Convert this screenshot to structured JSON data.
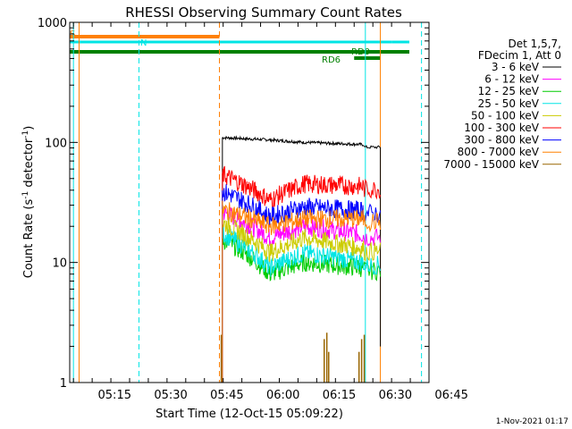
{
  "chart_data": {
    "type": "line",
    "title": "RHESSI Observing Summary Count Rates",
    "xlabel": "Start Time (12-Oct-15 05:09:22)",
    "ylabel_main": "Count Rate (s",
    "ylabel_sup1": "-1",
    "ylabel_mid": " detector",
    "ylabel_sup2": "-1",
    "ylabel_end": ")",
    "y_scale": "log",
    "ylim": [
      1,
      1000
    ],
    "xlim_minutes": [
      -6,
      90
    ],
    "x_ticks": [
      "05:15",
      "05:30",
      "05:45",
      "06:00",
      "06:15",
      "06:30",
      "06:45"
    ],
    "y_ticks": [
      "1",
      "10",
      "100",
      "1000"
    ],
    "legend_header": [
      "Det 1,5,7,",
      "FDecim 1, Att 0"
    ],
    "legend_placement": "top-right",
    "footer_timestamp": "1-Nov-2021 01:17",
    "data_window_minutes": [
      34,
      80
    ],
    "series": [
      {
        "name": "3 - 6 keV",
        "color": "#000000",
        "start": 110,
        "dip": 105,
        "mid": 100,
        "end": 96
      },
      {
        "name": "6 - 12 keV",
        "color": "#ff00ff",
        "start": 27,
        "dip": 16,
        "mid": 20,
        "end": 17
      },
      {
        "name": "12 - 25 keV",
        "color": "#00cc00",
        "start": 16,
        "dip": 8,
        "mid": 10,
        "end": 9
      },
      {
        "name": "25 - 50 keV",
        "color": "#00e5e5",
        "start": 18,
        "dip": 9,
        "mid": 12,
        "end": 10
      },
      {
        "name": "50 - 100 keV",
        "color": "#cccc00",
        "start": 22,
        "dip": 12,
        "mid": 16,
        "end": 13
      },
      {
        "name": "100 - 300 keV",
        "color": "#ff0000",
        "start": 55,
        "dip": 33,
        "mid": 45,
        "end": 43
      },
      {
        "name": "300 - 800 keV",
        "color": "#0000ff",
        "start": 40,
        "dip": 24,
        "mid": 29,
        "end": 27
      },
      {
        "name": "800 - 7000 keV",
        "color": "#ff8000",
        "start": 28,
        "dip": 20,
        "mid": 23,
        "end": 23
      },
      {
        "name": "7000 - 15000 keV",
        "color": "#996600",
        "start": 1,
        "dip": 1,
        "mid": 1,
        "end": 1
      }
    ],
    "flags": [
      {
        "label": "S",
        "color": "#ff8000",
        "x_from": -6,
        "x_to": 34
      },
      {
        "label": "N",
        "color": "#00e5e5",
        "x_from": -6,
        "x_to": 80
      },
      {
        "label": "RD6",
        "color": "#008000",
        "x_from": -6,
        "x_to": 90
      },
      {
        "label": "RD0",
        "color": "#008000",
        "x_from": 70,
        "x_to": 77
      }
    ],
    "vlines": [
      {
        "x": -5,
        "color": "#00e5e5",
        "style": "solid"
      },
      {
        "x": -3.5,
        "color": "#ff8000",
        "style": "solid"
      },
      {
        "x": 12.5,
        "color": "#00e5e5",
        "style": "dashed"
      },
      {
        "x": 34,
        "color": "#ff8000",
        "style": "dashed"
      },
      {
        "x": 73,
        "color": "#00e5e5",
        "style": "solid"
      },
      {
        "x": 77,
        "color": "#ff8000",
        "style": "solid"
      },
      {
        "x": 88,
        "color": "#00e5e5",
        "style": "dashed"
      }
    ],
    "spikes": [
      {
        "x": 34.5,
        "y": 2.5
      },
      {
        "x": 62,
        "y": 2.3
      },
      {
        "x": 62.7,
        "y": 2.6
      },
      {
        "x": 63.2,
        "y": 1.8
      },
      {
        "x": 71.3,
        "y": 1.8
      },
      {
        "x": 72,
        "y": 2.3
      },
      {
        "x": 72.7,
        "y": 2.5
      }
    ]
  }
}
